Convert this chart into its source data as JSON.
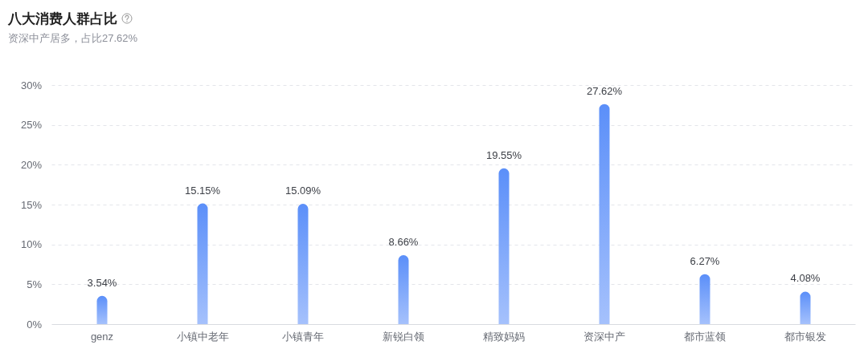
{
  "chart_data": {
    "type": "bar",
    "title": "八大消费人群占比",
    "subtitle": "资深中产居多，占比27.62%",
    "categories": [
      "genz",
      "小镇中老年",
      "小镇青年",
      "新锐白领",
      "精致妈妈",
      "资深中产",
      "都市蓝领",
      "都市银发"
    ],
    "values": [
      3.54,
      15.15,
      15.09,
      8.66,
      19.55,
      27.62,
      6.27,
      4.08
    ],
    "value_labels": [
      "3.54%",
      "15.15%",
      "15.09%",
      "8.66%",
      "19.55%",
      "27.62%",
      "6.27%",
      "4.08%"
    ],
    "color": "#5b8ff9",
    "ylim": [
      0,
      30
    ],
    "yticks": [
      {
        "value": 0,
        "label": "0%"
      },
      {
        "value": 5,
        "label": "5%"
      },
      {
        "value": 10,
        "label": "10%"
      },
      {
        "value": 15,
        "label": "15%"
      },
      {
        "value": 20,
        "label": "20%"
      },
      {
        "value": 25,
        "label": "25%"
      },
      {
        "value": 30,
        "label": "30%"
      }
    ],
    "grid": "y"
  }
}
